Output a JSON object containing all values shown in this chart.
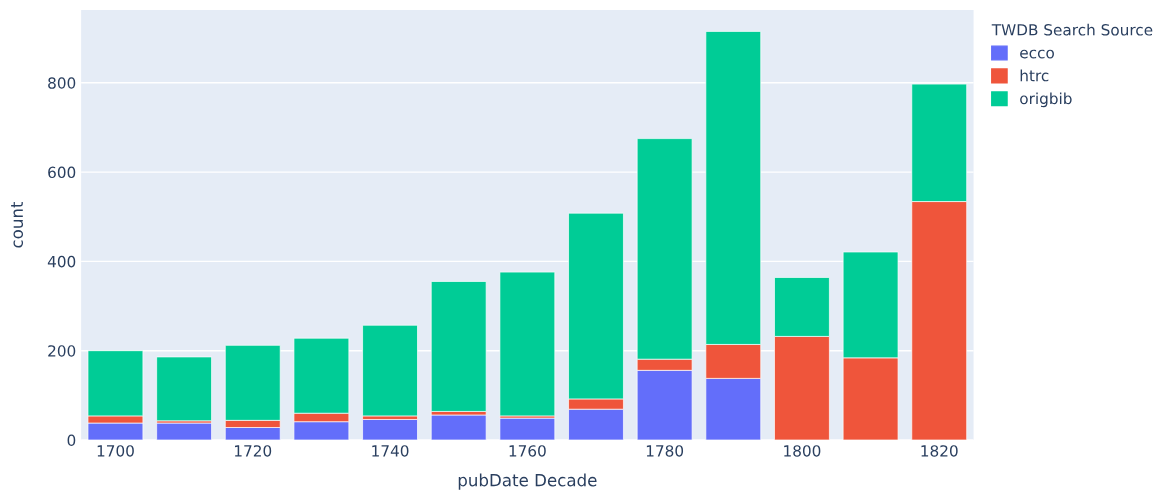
{
  "chart_data": {
    "type": "bar",
    "stacked": true,
    "xlabel": "pubDate Decade",
    "ylabel": "count",
    "legend_title": "TWDB Search Source",
    "x": [
      1700,
      1710,
      1720,
      1730,
      1740,
      1750,
      1760,
      1770,
      1780,
      1790,
      1800,
      1810,
      1820
    ],
    "series": [
      {
        "name": "ecco",
        "color": "#636efa",
        "values": [
          38,
          38,
          28,
          41,
          46,
          56,
          49,
          69,
          156,
          138,
          null,
          null,
          null
        ]
      },
      {
        "name": "htrc",
        "color": "#ef553b",
        "values": [
          16,
          5,
          16,
          19,
          8,
          8,
          5,
          23,
          25,
          76,
          232,
          184,
          534
        ]
      },
      {
        "name": "origbib",
        "color": "#00cc96",
        "values": [
          146,
          143,
          168,
          168,
          203,
          291,
          322,
          416,
          494,
          701,
          132,
          237,
          263
        ]
      }
    ],
    "xlim": [
      1695,
      1825
    ],
    "xticks": [
      1700,
      1720,
      1740,
      1760,
      1780,
      1800,
      1820
    ],
    "ylim": [
      0,
      963
    ],
    "yticks": [
      0,
      200,
      400,
      600,
      800
    ],
    "grid": "y",
    "legend": "top right"
  }
}
